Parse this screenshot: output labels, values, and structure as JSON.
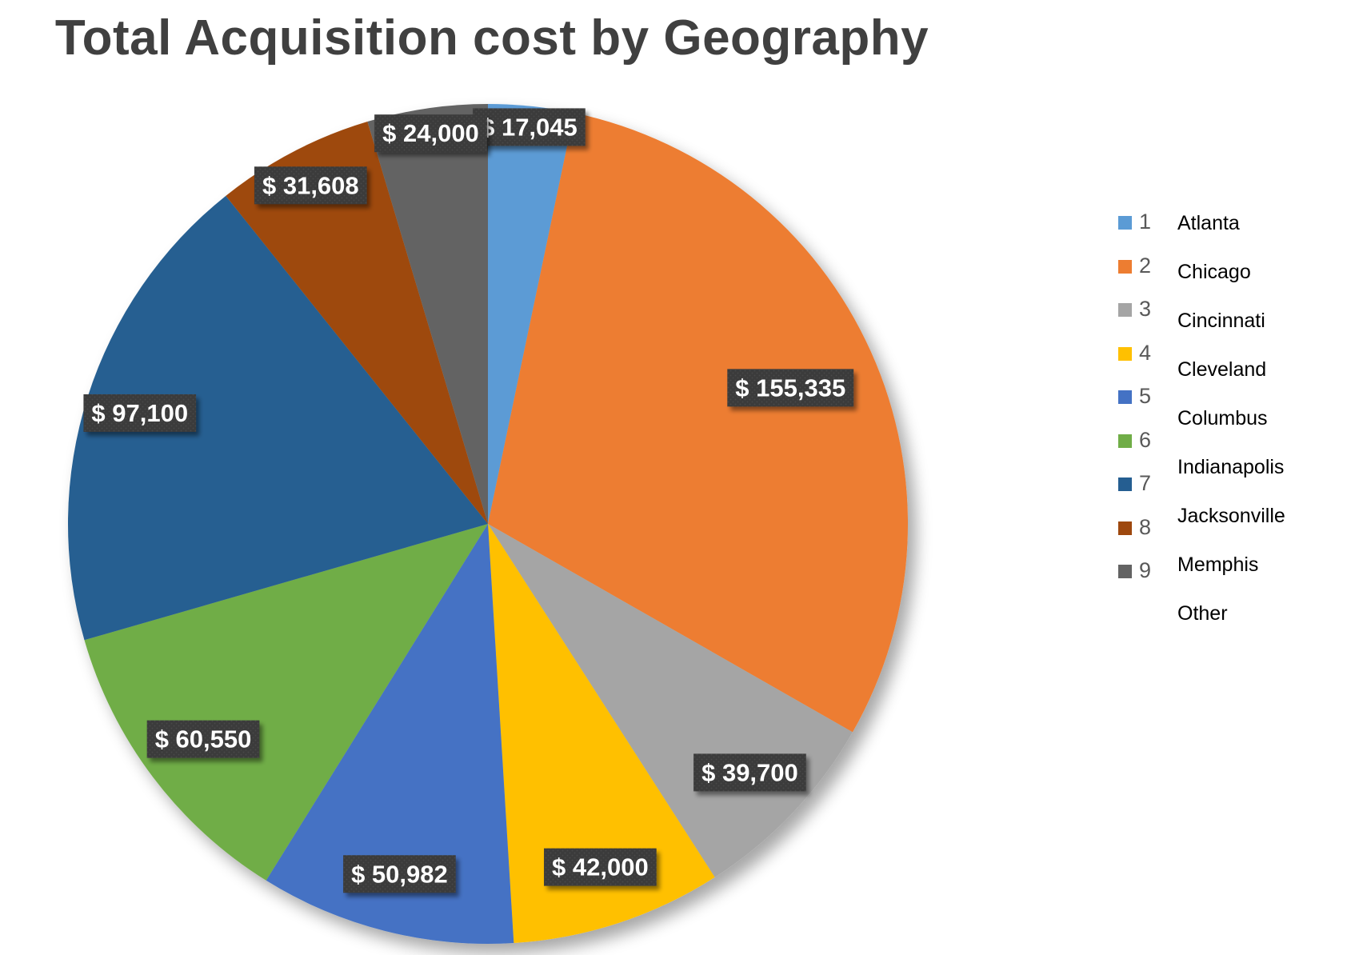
{
  "chart_data": {
    "type": "pie",
    "title": "Total Acquisition cost by Geography",
    "categories": [
      "1",
      "2",
      "3",
      "4",
      "5",
      "6",
      "7",
      "8",
      "9"
    ],
    "category_names": [
      "Atlanta",
      "Chicago",
      "Cincinnati",
      "Cleveland",
      "Columbus",
      "Indianapolis",
      "Jacksonville",
      "Memphis",
      "Other"
    ],
    "values": [
      17045,
      155335,
      39700,
      42000,
      50982,
      60550,
      97100,
      31608,
      24000
    ],
    "data_labels": [
      "$ 17,045",
      "$ 155,335",
      "$ 39,700",
      "$ 42,000",
      "$ 50,982",
      "$ 60,550",
      "$ 97,100",
      "$ 31,608",
      "$ 24,000"
    ],
    "colors": [
      "#5B9BD5",
      "#ED7D31",
      "#A5A5A5",
      "#FFC000",
      "#4472C4",
      "#70AD47",
      "#255E91",
      "#9E480E",
      "#636363"
    ],
    "start_angle": "12 o'clock",
    "direction": "clockwise",
    "legend_position": "right"
  }
}
